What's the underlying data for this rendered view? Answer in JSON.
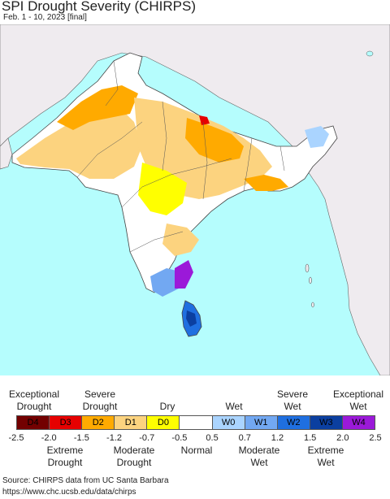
{
  "header": {
    "title": "SPI Drought Severity (CHIRPS)",
    "subtitle": "Feb. 1 - 10, 2023 [final]"
  },
  "legend": {
    "top_labels": {
      "exceptional_drought": "Exceptional\nDrought",
      "severe_drought": "Severe\nDrought",
      "dry": "Dry",
      "wet": "Wet",
      "severe_wet": "Severe\nWet",
      "exceptional_wet": "Exceptional\nWet"
    },
    "bottom_labels": {
      "extreme_drought": "Extreme\nDrought",
      "moderate_drought": "Moderate\nDrought",
      "normal": "Normal",
      "moderate_wet": "Moderate\nWet",
      "extreme_wet": "Extreme\nWet"
    },
    "classes": [
      {
        "code": "D4",
        "color": "#730000",
        "text_color": "#000000"
      },
      {
        "code": "D3",
        "color": "#e60000",
        "text_color": "#000000"
      },
      {
        "code": "D2",
        "color": "#ffaa00",
        "text_color": "#000000"
      },
      {
        "code": "D1",
        "color": "#fcd37f",
        "text_color": "#000000"
      },
      {
        "code": "D0",
        "color": "#ffff00",
        "text_color": "#000000"
      },
      {
        "code": "",
        "color": "#ffffff",
        "text_color": "#000000"
      },
      {
        "code": "W0",
        "color": "#aad4ff",
        "text_color": "#000000"
      },
      {
        "code": "W1",
        "color": "#72a8f2",
        "text_color": "#000000"
      },
      {
        "code": "W2",
        "color": "#1f6fe0",
        "text_color": "#000000"
      },
      {
        "code": "W3",
        "color": "#0b3fa0",
        "text_color": "#000000"
      },
      {
        "code": "W4",
        "color": "#9b19d9",
        "text_color": "#000000"
      }
    ],
    "ticks": [
      "-2.5",
      "-2.0",
      "-1.5",
      "-1.2",
      "-0.7",
      "-0.5",
      "0.5",
      "0.7",
      "1.2",
      "1.5",
      "2.0",
      "2.5"
    ]
  },
  "footer": {
    "source": "Source: CHIRPS data from UC Santa Barbara",
    "url": "https://www.chc.ucsb.edu/data/chirps"
  },
  "colors": {
    "ocean": "#b5fdfd",
    "outside_land": "#efebef",
    "boundary": "#555555"
  }
}
